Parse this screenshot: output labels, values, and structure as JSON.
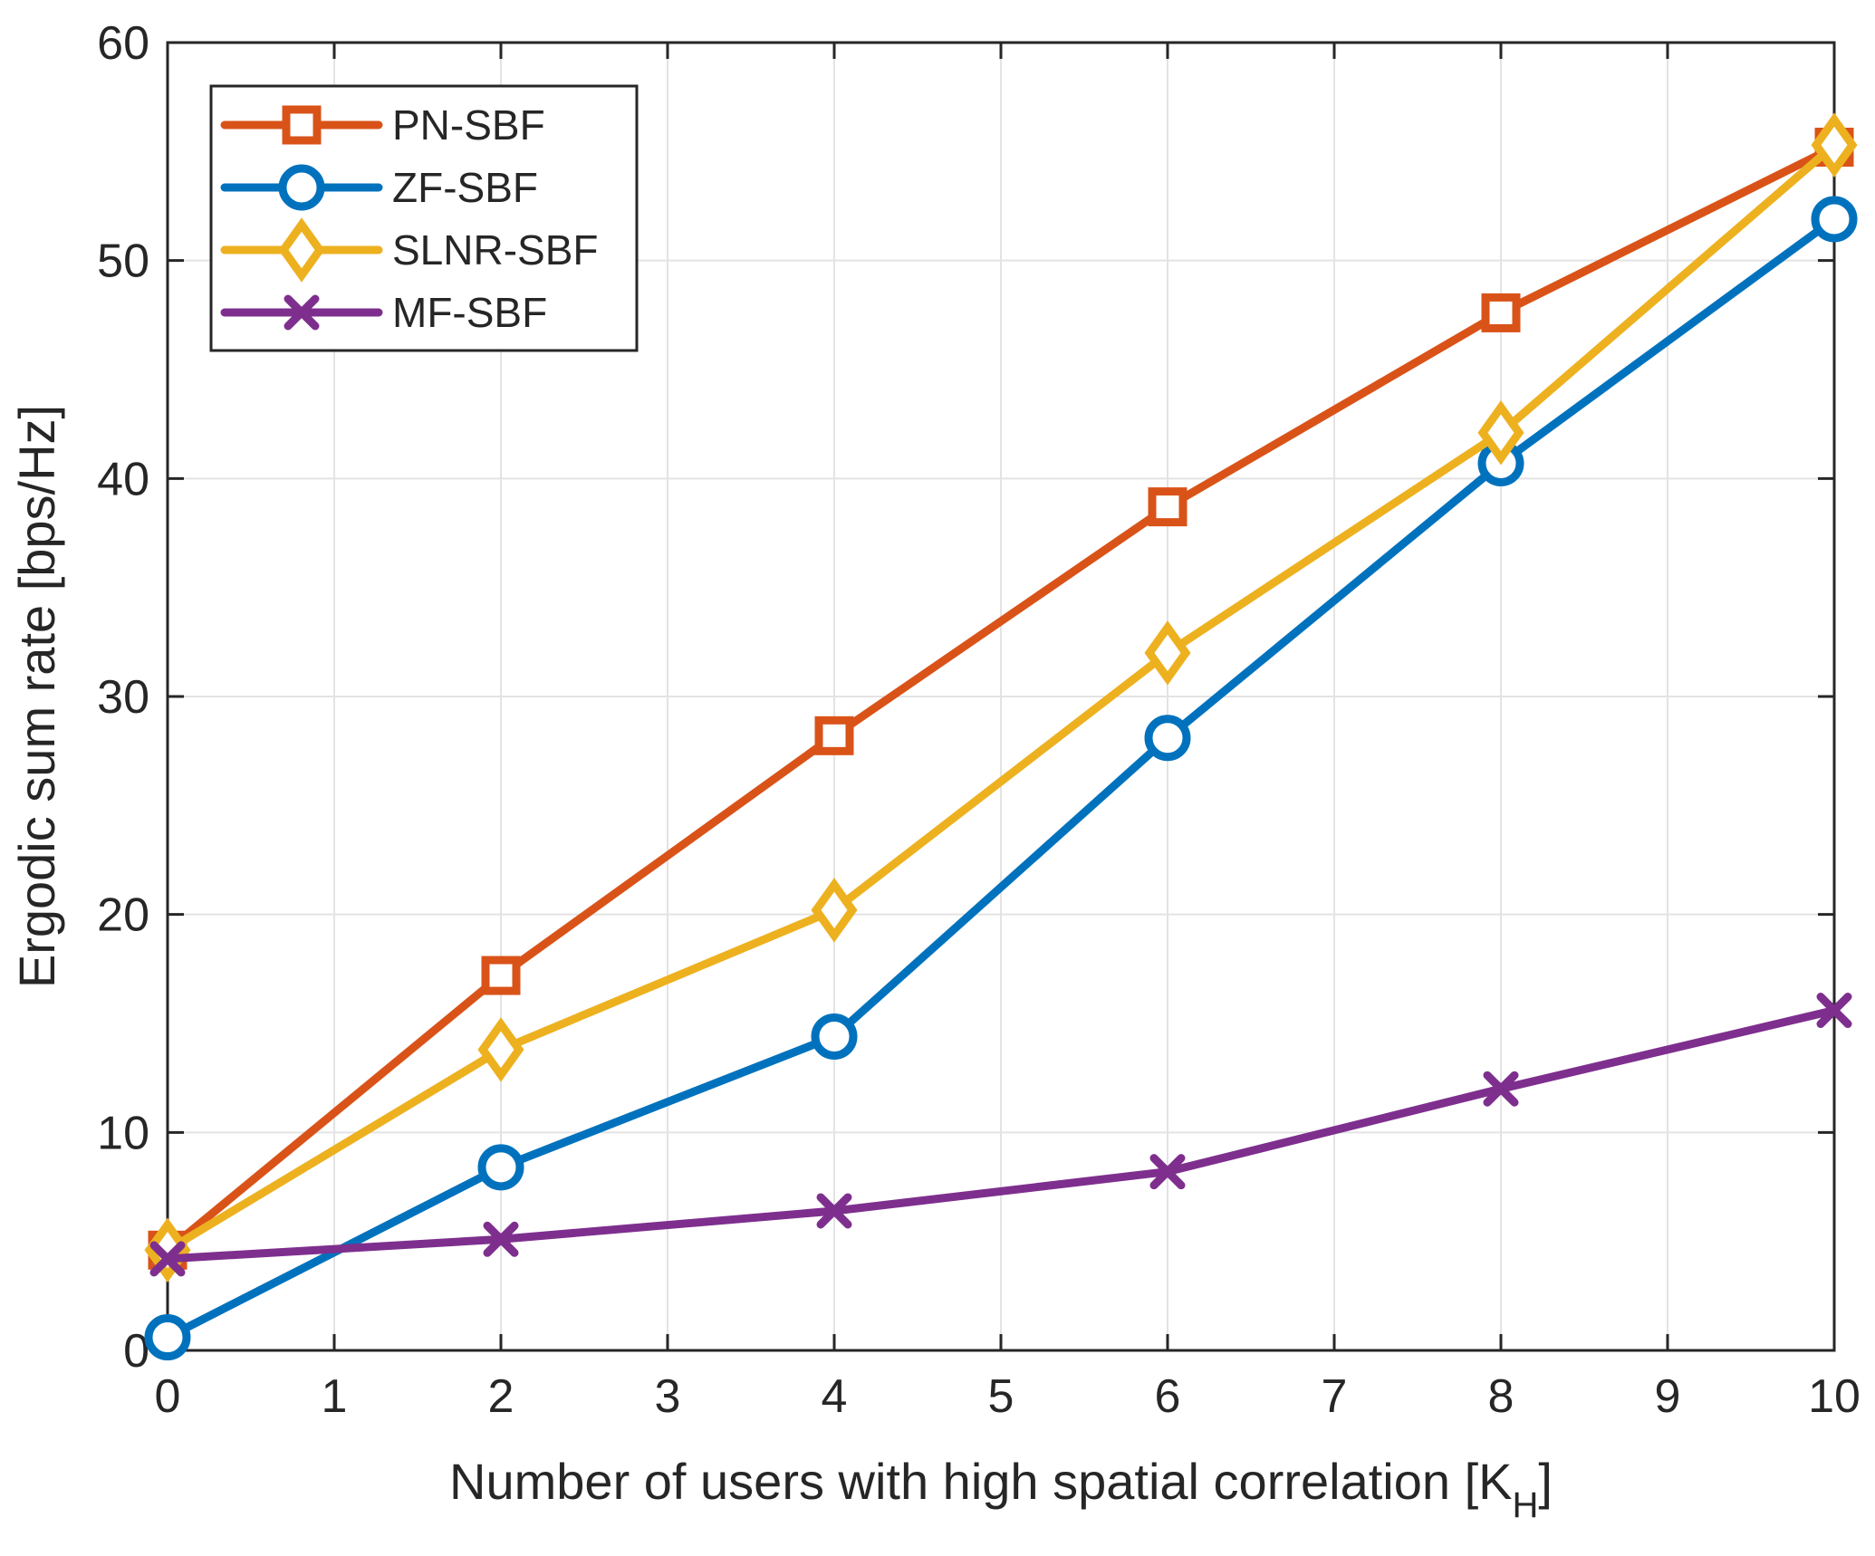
{
  "chart_data": {
    "type": "line",
    "title": "",
    "xlabel": "Number of users with high spatial correlation [K",
    "xlabel_subscript": "H",
    "xlabel_suffix": "]",
    "ylabel": "Ergodic sum rate [bps/Hz]",
    "xlim": [
      0,
      10
    ],
    "ylim": [
      0,
      60
    ],
    "xticks": [
      "0",
      "1",
      "2",
      "3",
      "4",
      "5",
      "6",
      "7",
      "8",
      "9",
      "10"
    ],
    "yticks": [
      "0",
      "10",
      "20",
      "30",
      "40",
      "50",
      "60"
    ],
    "grid": true,
    "legend_position": "top-left",
    "x": [
      0,
      2,
      4,
      6,
      8,
      10
    ],
    "series": [
      {
        "name": "PN-SBF",
        "color": "#D95319",
        "marker": "square",
        "values": [
          4.6,
          17.2,
          28.2,
          38.7,
          47.6,
          55.2
        ]
      },
      {
        "name": "ZF-SBF",
        "color": "#0072BD",
        "marker": "circle",
        "values": [
          0.6,
          8.4,
          14.4,
          28.1,
          40.7,
          51.9
        ]
      },
      {
        "name": "SLNR-SBF",
        "color": "#EDB120",
        "marker": "diamond",
        "values": [
          4.6,
          13.8,
          20.2,
          32.0,
          42.1,
          55.3
        ]
      },
      {
        "name": "MF-SBF",
        "color": "#7E2F8E",
        "marker": "x",
        "values": [
          4.2,
          5.1,
          6.4,
          8.2,
          12.0,
          15.6
        ]
      }
    ]
  }
}
